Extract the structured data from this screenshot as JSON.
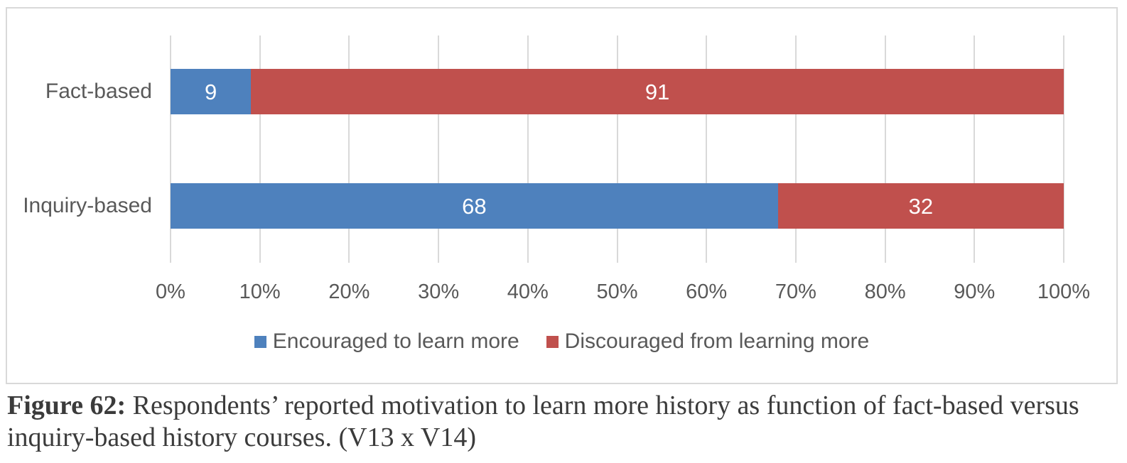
{
  "chart_data": {
    "type": "bar",
    "orientation": "horizontal",
    "stacked": true,
    "categories": [
      "Fact-based",
      "Inquiry-based"
    ],
    "series": [
      {
        "name": "Encouraged to learn more",
        "color": "#4e81bd",
        "values": [
          9,
          68
        ]
      },
      {
        "name": "Discouraged from learning more",
        "color": "#c0504d",
        "values": [
          91,
          32
        ]
      }
    ],
    "x_axis": {
      "min": 0,
      "max": 100,
      "ticks": [
        "0%",
        "10%",
        "20%",
        "30%",
        "40%",
        "50%",
        "60%",
        "70%",
        "80%",
        "90%",
        "100%"
      ]
    },
    "grid": true,
    "legend_position": "bottom",
    "gridline_color": "#d9d9d9",
    "axis_text_color": "#595959",
    "bar_label_color": "#ffffff"
  },
  "caption": {
    "prefix": "Figure 62:",
    "line1_rest": " Respondents’ reported motivation to learn more history as function of fact-based versus",
    "line2": "inquiry-based history courses. (V13 x V14)"
  }
}
